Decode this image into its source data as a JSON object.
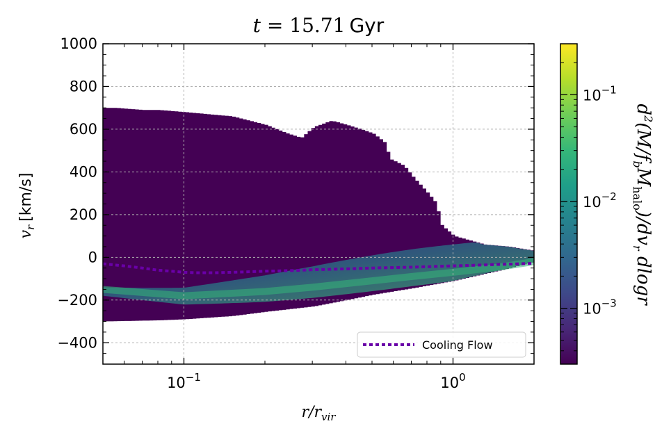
{
  "chart_data": {
    "type": "heatmap",
    "title": "t = 15.71 Gyr",
    "title_parts": {
      "var": "t",
      "eq": " = 15.71",
      "unit": "Gyr"
    },
    "xlabel": "r/r_vir",
    "xlabel_parts": {
      "main": "r/r",
      "sub": "vir"
    },
    "ylabel": "v_r [km/s]",
    "ylabel_parts": {
      "main": "v",
      "sub": "r",
      "unit": "[km/s]"
    },
    "xscale": "log",
    "xlim": [
      0.05,
      2.0
    ],
    "ylim": [
      -500,
      1000
    ],
    "grid": true,
    "x_ticks": [
      {
        "value": 0.1,
        "base": "10",
        "exp": "−1"
      },
      {
        "value": 1.0,
        "base": "10",
        "exp": "0"
      }
    ],
    "y_ticks": [
      {
        "value": 1000,
        "label": "1000"
      },
      {
        "value": 800,
        "label": "800"
      },
      {
        "value": 600,
        "label": "600"
      },
      {
        "value": 400,
        "label": "400"
      },
      {
        "value": 200,
        "label": "200"
      },
      {
        "value": 0,
        "label": "0"
      },
      {
        "value": -200,
        "label": "−200"
      },
      {
        "value": -400,
        "label": "−400"
      }
    ],
    "colormap": "viridis",
    "colormap_stops": [
      "#440154",
      "#482878",
      "#3e4989",
      "#31688e",
      "#26828e",
      "#1f9e89",
      "#35b779",
      "#6ece58",
      "#b5de2b",
      "#fde725"
    ],
    "colorbar": {
      "scale": "log",
      "range": [
        0.0003,
        0.3
      ],
      "label": "d²(M/f_b M_halo)/dv_r dlogr",
      "label_parts": {
        "d2": "d",
        "sup2": "2",
        "open": "(M/f",
        "b": "b",
        "M": "M",
        "halo": "halo",
        "rest": ")/dv",
        "r": "r",
        "tail": " dlogr"
      },
      "ticks": [
        {
          "value": 0.1,
          "base": "10",
          "exp": "−1"
        },
        {
          "value": 0.01,
          "base": "10",
          "exp": "−2"
        },
        {
          "value": 0.001,
          "base": "10",
          "exp": "−3"
        }
      ]
    },
    "envelope_upper": [
      [
        0.05,
        700
      ],
      [
        0.055,
        700
      ],
      [
        0.07,
        690
      ],
      [
        0.08,
        690
      ],
      [
        0.1,
        680
      ],
      [
        0.15,
        660
      ],
      [
        0.2,
        620
      ],
      [
        0.24,
        580
      ],
      [
        0.27,
        560
      ],
      [
        0.3,
        610
      ],
      [
        0.35,
        640
      ],
      [
        0.4,
        620
      ],
      [
        0.45,
        600
      ],
      [
        0.5,
        580
      ],
      [
        0.55,
        540
      ],
      [
        0.58,
        460
      ],
      [
        0.65,
        430
      ],
      [
        0.7,
        380
      ],
      [
        0.8,
        300
      ],
      [
        0.85,
        260
      ],
      [
        0.88,
        200
      ],
      [
        0.9,
        150
      ],
      [
        1.0,
        100
      ],
      [
        1.3,
        60
      ],
      [
        1.6,
        50
      ],
      [
        2.0,
        30
      ]
    ],
    "envelope_lower": [
      [
        0.05,
        -300
      ],
      [
        0.08,
        -295
      ],
      [
        0.1,
        -290
      ],
      [
        0.15,
        -275
      ],
      [
        0.2,
        -255
      ],
      [
        0.3,
        -230
      ],
      [
        0.4,
        -200
      ],
      [
        0.5,
        -175
      ],
      [
        0.7,
        -145
      ],
      [
        1.0,
        -110
      ],
      [
        1.5,
        -60
      ],
      [
        2.0,
        -20
      ]
    ],
    "ridge": [
      [
        0.05,
        -150
      ],
      [
        0.1,
        -180
      ],
      [
        0.2,
        -160
      ],
      [
        0.3,
        -140
      ],
      [
        0.5,
        -110
      ],
      [
        0.7,
        -90
      ],
      [
        1.0,
        -70
      ],
      [
        1.5,
        -45
      ],
      [
        2.0,
        -20
      ]
    ],
    "series": [
      {
        "name": "Cooling Flow",
        "color": "#6a00a8",
        "style": "dotted",
        "x": [
          0.05,
          0.06,
          0.07,
          0.08,
          0.09,
          0.1,
          0.11,
          0.13,
          0.15,
          0.18,
          0.2,
          0.25,
          0.3,
          0.4,
          0.5,
          0.6,
          0.7,
          0.8,
          1.0,
          1.2,
          1.5,
          1.8,
          2.0
        ],
        "y": [
          -30,
          -40,
          -50,
          -60,
          -65,
          -70,
          -72,
          -72,
          -70,
          -67,
          -65,
          -62,
          -58,
          -54,
          -50,
          -48,
          -46,
          -44,
          -40,
          -37,
          -33,
          -30,
          -28
        ]
      }
    ],
    "legend": {
      "placement": "lower right",
      "entries": [
        "Cooling Flow"
      ]
    }
  }
}
